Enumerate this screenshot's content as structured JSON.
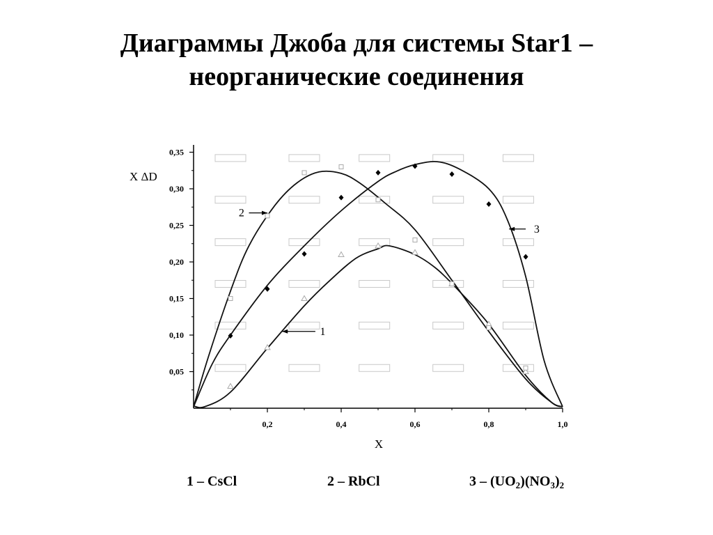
{
  "title_lines": [
    "Диаграммы Джоба для системы Star1 –",
    "неорганические соединения"
  ],
  "chart_data": {
    "type": "line",
    "xlabel": "X",
    "ylabel": "X ΔD",
    "xlim": [
      0,
      1.0
    ],
    "ylim": [
      0,
      0.36
    ],
    "x_ticks": [
      0.2,
      0.4,
      0.6,
      0.8,
      1.0
    ],
    "x_tick_labels": [
      "0,2",
      "0,4",
      "0,6",
      "0,8",
      "1,0"
    ],
    "y_ticks": [
      0.05,
      0.1,
      0.15,
      0.2,
      0.25,
      0.3,
      0.35
    ],
    "y_tick_labels": [
      "0,05",
      "0,10",
      "0,15",
      "0,20",
      "0,25",
      "0,30",
      "0,35"
    ],
    "grid": false,
    "series": [
      {
        "name": "1",
        "marker": "triangle",
        "points": [
          [
            0.1,
            0.03
          ],
          [
            0.2,
            0.083
          ],
          [
            0.3,
            0.15
          ],
          [
            0.4,
            0.21
          ],
          [
            0.5,
            0.222
          ],
          [
            0.6,
            0.213
          ],
          [
            0.7,
            0.17
          ],
          [
            0.8,
            0.115
          ],
          [
            0.9,
            0.05
          ]
        ],
        "curve": [
          [
            0,
            0.003
          ],
          [
            0.03,
            0.002
          ],
          [
            0.1,
            0.022
          ],
          [
            0.2,
            0.082
          ],
          [
            0.3,
            0.14
          ],
          [
            0.37,
            0.175
          ],
          [
            0.44,
            0.205
          ],
          [
            0.5,
            0.218
          ],
          [
            0.53,
            0.222
          ],
          [
            0.6,
            0.21
          ],
          [
            0.66,
            0.19
          ],
          [
            0.72,
            0.16
          ],
          [
            0.8,
            0.115
          ],
          [
            0.9,
            0.045
          ],
          [
            0.97,
            0.008
          ],
          [
            1.0,
            0.002
          ]
        ]
      },
      {
        "name": "2",
        "marker": "square",
        "points": [
          [
            0.1,
            0.15
          ],
          [
            0.2,
            0.263
          ],
          [
            0.3,
            0.322
          ],
          [
            0.4,
            0.33
          ],
          [
            0.5,
            0.285
          ],
          [
            0.6,
            0.23
          ],
          [
            0.7,
            0.17
          ],
          [
            0.8,
            0.11
          ],
          [
            0.9,
            0.055
          ]
        ],
        "curve": [
          [
            0,
            0.002
          ],
          [
            0.04,
            0.07
          ],
          [
            0.1,
            0.16
          ],
          [
            0.15,
            0.222
          ],
          [
            0.22,
            0.277
          ],
          [
            0.28,
            0.308
          ],
          [
            0.34,
            0.323
          ],
          [
            0.4,
            0.321
          ],
          [
            0.45,
            0.308
          ],
          [
            0.52,
            0.28
          ],
          [
            0.6,
            0.244
          ],
          [
            0.7,
            0.175
          ],
          [
            0.8,
            0.105
          ],
          [
            0.9,
            0.04
          ],
          [
            0.97,
            0.008
          ],
          [
            1.0,
            0.002
          ]
        ]
      },
      {
        "name": "3",
        "marker": "diamond",
        "points": [
          [
            0.1,
            0.099
          ],
          [
            0.2,
            0.163
          ],
          [
            0.3,
            0.211
          ],
          [
            0.4,
            0.288
          ],
          [
            0.5,
            0.322
          ],
          [
            0.6,
            0.331
          ],
          [
            0.7,
            0.32
          ],
          [
            0.8,
            0.279
          ],
          [
            0.9,
            0.207
          ]
        ],
        "curve": [
          [
            0,
            0.002
          ],
          [
            0.05,
            0.06
          ],
          [
            0.1,
            0.1
          ],
          [
            0.2,
            0.168
          ],
          [
            0.3,
            0.222
          ],
          [
            0.4,
            0.27
          ],
          [
            0.5,
            0.31
          ],
          [
            0.55,
            0.324
          ],
          [
            0.6,
            0.333
          ],
          [
            0.66,
            0.337
          ],
          [
            0.72,
            0.327
          ],
          [
            0.8,
            0.3
          ],
          [
            0.85,
            0.258
          ],
          [
            0.9,
            0.18
          ],
          [
            0.95,
            0.065
          ],
          [
            1.0,
            0.002
          ]
        ]
      }
    ],
    "annotations": [
      {
        "label": "1",
        "arrow_from": [
          0.33,
          0.105
        ],
        "arrow_to": [
          0.24,
          0.105
        ],
        "text_pos": [
          0.35,
          0.105
        ]
      },
      {
        "label": "2",
        "arrow_from": [
          0.15,
          0.267
        ],
        "arrow_to": [
          0.2,
          0.267
        ],
        "text_pos": [
          0.13,
          0.267
        ]
      },
      {
        "label": "3",
        "arrow_from": [
          0.9,
          0.245
        ],
        "arrow_to": [
          0.855,
          0.245
        ],
        "text_pos": [
          0.93,
          0.245
        ]
      }
    ]
  },
  "legend": {
    "item1": "1 – CsCl",
    "item2": "2 – RbCl",
    "item3_prefix": "3 – (UO",
    "item3_sub1": "2",
    "item3_mid": ")(NO",
    "item3_sub2": "3",
    "item3_close": ")",
    "item3_sub3": "2"
  }
}
